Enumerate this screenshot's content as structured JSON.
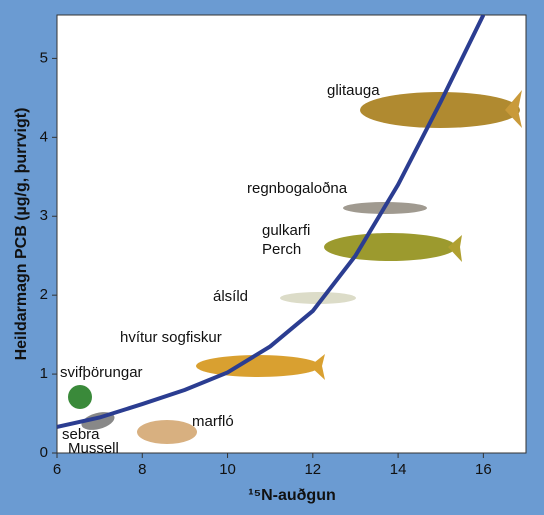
{
  "chart_data": {
    "type": "line",
    "x_label": "¹⁵N-auðgun",
    "y_label": "Heildarmagn PCB (µg/g, þurrvigt)",
    "x": [
      6,
      7,
      8,
      9,
      10,
      11,
      12,
      13,
      14,
      15,
      16
    ],
    "series": [
      {
        "color": "#2b3d91",
        "values": [
          0.33,
          0.45,
          0.62,
          0.8,
          1.02,
          1.35,
          1.8,
          2.5,
          3.4,
          4.45,
          5.55
        ]
      }
    ],
    "xlim": [
      6,
      17
    ],
    "ylim": [
      0,
      5.55
    ],
    "xticks": [
      6,
      8,
      10,
      12,
      14,
      16
    ],
    "yticks": [
      0,
      1,
      2,
      3,
      4,
      5
    ],
    "annotations": [
      "glitauga",
      "regnbogaloðna",
      "gulkarfi",
      "Perch",
      "álsíld",
      "hvítur sogfiskur",
      "svifþörungar",
      "sebra",
      "Mussell",
      "marfló"
    ]
  }
}
